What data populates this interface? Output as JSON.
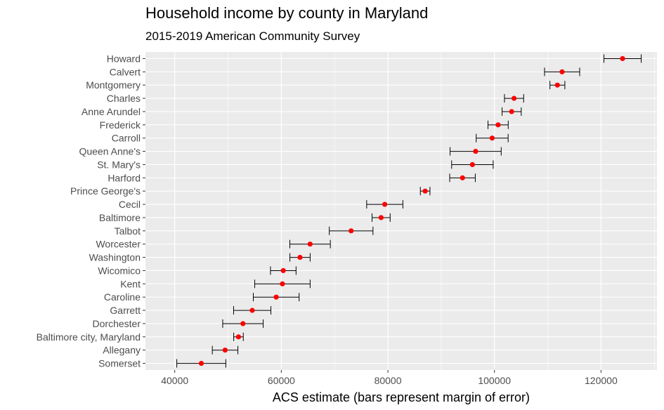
{
  "chart_data": {
    "type": "scatter",
    "title": "Household income by county in Maryland",
    "subtitle": "2015-2019 American Community Survey",
    "xlabel": "ACS estimate (bars represent margin of error)",
    "ylabel": "",
    "xlim": [
      34500,
      130500
    ],
    "x_ticks": [
      40000,
      60000,
      80000,
      100000,
      120000
    ],
    "grid": true,
    "point_color": "#ff0000",
    "errorbar_color": "#000000",
    "panel_color": "#ebebeb",
    "points": [
      {
        "name": "Howard",
        "estimate": 124042,
        "moe": 3500
      },
      {
        "name": "Calvert",
        "estimate": 112696,
        "moe": 3300
      },
      {
        "name": "Montgomery",
        "estimate": 111812,
        "moe": 1400
      },
      {
        "name": "Charles",
        "estimate": 103678,
        "moe": 1800
      },
      {
        "name": "Anne Arundel",
        "estimate": 103225,
        "moe": 1800
      },
      {
        "name": "Frederick",
        "estimate": 100685,
        "moe": 1900
      },
      {
        "name": "Carroll",
        "estimate": 99569,
        "moe": 3000
      },
      {
        "name": "Queen Anne's",
        "estimate": 96467,
        "moe": 4800
      },
      {
        "name": "St. Mary's",
        "estimate": 95864,
        "moe": 3900
      },
      {
        "name": "Harford",
        "estimate": 94003,
        "moe": 2400
      },
      {
        "name": "Prince George's",
        "estimate": 86994,
        "moe": 900
      },
      {
        "name": "Cecil",
        "estimate": 79415,
        "moe": 3400
      },
      {
        "name": "Baltimore",
        "estimate": 78724,
        "moe": 1700
      },
      {
        "name": "Talbot",
        "estimate": 73102,
        "moe": 4100
      },
      {
        "name": "Worcester",
        "estimate": 65396,
        "moe": 3800
      },
      {
        "name": "Washington",
        "estimate": 63510,
        "moe": 1900
      },
      {
        "name": "Wicomico",
        "estimate": 60366,
        "moe": 2400
      },
      {
        "name": "Kent",
        "estimate": 60208,
        "moe": 5200
      },
      {
        "name": "Caroline",
        "estimate": 59042,
        "moe": 4300
      },
      {
        "name": "Garrett",
        "estimate": 54542,
        "moe": 3500
      },
      {
        "name": "Dorchester",
        "estimate": 52799,
        "moe": 3800
      },
      {
        "name": "Baltimore city, Maryland",
        "estimate": 51962,
        "moe": 900
      },
      {
        "name": "Allegany",
        "estimate": 49449,
        "moe": 2400
      },
      {
        "name": "Somerset",
        "estimate": 44980,
        "moe": 4600
      }
    ]
  }
}
